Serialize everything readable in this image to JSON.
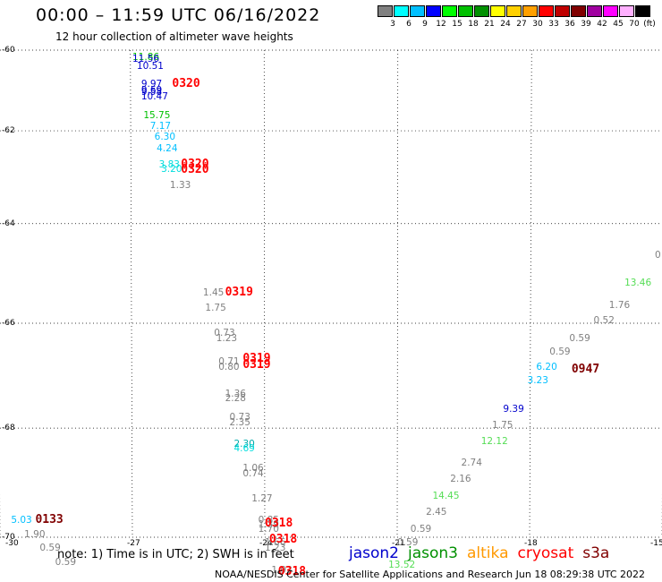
{
  "title": "00:00 – 11:59 UTC 06/16/2022",
  "subtitle": "12 hour collection of altimeter wave heights",
  "legend": {
    "bins": [
      {
        "label": "3",
        "color": "#808080"
      },
      {
        "label": "6",
        "color": "#00ffff"
      },
      {
        "label": "9",
        "color": "#00bfff"
      },
      {
        "label": "12",
        "color": "#0000ff"
      },
      {
        "label": "15",
        "color": "#00ff00"
      },
      {
        "label": "18",
        "color": "#00c000"
      },
      {
        "label": "21",
        "color": "#009000"
      },
      {
        "label": "24",
        "color": "#ffff00"
      },
      {
        "label": "27",
        "color": "#ffd000"
      },
      {
        "label": "30",
        "color": "#ffa000"
      },
      {
        "label": "33",
        "color": "#ff0000"
      },
      {
        "label": "36",
        "color": "#c00000"
      },
      {
        "label": "39",
        "color": "#800000"
      },
      {
        "label": "42",
        "color": "#a000a0"
      },
      {
        "label": "45",
        "color": "#ff00ff"
      },
      {
        "label": "70",
        "color": "#ffb0ff"
      },
      {
        "label": "",
        "color": "#000000"
      }
    ],
    "unit": "(ft)"
  },
  "axes": {
    "lat_ticks": [
      "-60",
      "-62",
      "-64",
      "-66",
      "-68",
      "-70"
    ],
    "lon_ticks": [
      "-30",
      "-27",
      "-24",
      "-21",
      "-18",
      "-15"
    ]
  },
  "observations": [
    {
      "text": "11.86",
      "lon": -27.0,
      "lat": -60.2,
      "color": "#00c000"
    },
    {
      "text": "11.56",
      "lon": -27.0,
      "lat": -60.25,
      "color": "#0000cc"
    },
    {
      "text": "10.51",
      "lon": -26.9,
      "lat": -60.45,
      "color": "#0000cc"
    },
    {
      "text": "9.97",
      "lon": -26.8,
      "lat": -60.9,
      "color": "#0000cc"
    },
    {
      "text": "9.69",
      "lon": -26.8,
      "lat": -61.05,
      "color": "#0000cc"
    },
    {
      "text": "9.58",
      "lon": -26.8,
      "lat": -61.1,
      "color": "#0000cc"
    },
    {
      "text": "10.47",
      "lon": -26.8,
      "lat": -61.2,
      "color": "#0000cc"
    },
    {
      "text": "15.75",
      "lon": -26.75,
      "lat": -61.65,
      "color": "#00c000"
    },
    {
      "text": "7.17",
      "lon": -26.6,
      "lat": -61.9,
      "color": "#00bfff"
    },
    {
      "text": "6.30",
      "lon": -26.5,
      "lat": -62.15,
      "color": "#00bfff"
    },
    {
      "text": "4.24",
      "lon": -26.45,
      "lat": -62.4,
      "color": "#00bfff"
    },
    {
      "text": "3.83",
      "lon": -26.4,
      "lat": -62.75,
      "color": "#00dddd"
    },
    {
      "text": "3.20",
      "lon": -26.35,
      "lat": -62.85,
      "color": "#00dddd"
    },
    {
      "text": "1.33",
      "lon": -26.15,
      "lat": -63.2,
      "color": "#808080"
    },
    {
      "text": "1.45",
      "lon": -25.4,
      "lat": -65.4,
      "color": "#808080"
    },
    {
      "text": "1.75",
      "lon": -25.35,
      "lat": -65.7,
      "color": "#808080"
    },
    {
      "text": "0.73",
      "lon": -25.15,
      "lat": -66.2,
      "color": "#808080"
    },
    {
      "text": "1.23",
      "lon": -25.1,
      "lat": -66.3,
      "color": "#808080"
    },
    {
      "text": "0.71",
      "lon": -25.05,
      "lat": -66.75,
      "color": "#808080"
    },
    {
      "text": "0.80",
      "lon": -25.05,
      "lat": -66.85,
      "color": "#808080"
    },
    {
      "text": "1.36",
      "lon": -24.9,
      "lat": -67.35,
      "color": "#808080"
    },
    {
      "text": "2.28",
      "lon": -24.9,
      "lat": -67.45,
      "color": "#808080"
    },
    {
      "text": "0.73",
      "lon": -24.8,
      "lat": -67.8,
      "color": "#808080"
    },
    {
      "text": "2.35",
      "lon": -24.8,
      "lat": -67.9,
      "color": "#808080"
    },
    {
      "text": "2.30",
      "lon": -24.7,
      "lat": -68.3,
      "color": "#00aaaa"
    },
    {
      "text": "4.69",
      "lon": -24.7,
      "lat": -68.38,
      "color": "#00dddd"
    },
    {
      "text": "1.06",
      "lon": -24.5,
      "lat": -68.75,
      "color": "#808080"
    },
    {
      "text": "0.74",
      "lon": -24.5,
      "lat": -68.85,
      "color": "#808080"
    },
    {
      "text": "1.27",
      "lon": -24.3,
      "lat": -69.3,
      "color": "#808080"
    },
    {
      "text": "0.85",
      "lon": -24.15,
      "lat": -69.7,
      "color": "#808080"
    },
    {
      "text": "1.39",
      "lon": -24.15,
      "lat": -69.78,
      "color": "#808080"
    },
    {
      "text": "1.70",
      "lon": -24.15,
      "lat": -69.86,
      "color": "#808080"
    },
    {
      "text": "1.66",
      "lon": -24.0,
      "lat": -70.1,
      "color": "#808080"
    },
    {
      "text": "1.23",
      "lon": -24.0,
      "lat": -70.2,
      "color": "#808080"
    },
    {
      "text": "1.93",
      "lon": -23.85,
      "lat": -70.6,
      "color": "#808080"
    },
    {
      "text": "5.03",
      "lon": -29.75,
      "lat": -69.7,
      "color": "#00bfff"
    },
    {
      "text": "1.90",
      "lon": -29.45,
      "lat": -69.95,
      "color": "#808080"
    },
    {
      "text": "0.59",
      "lon": -29.1,
      "lat": -70.2,
      "color": "#808080"
    },
    {
      "text": "0.59",
      "lon": -28.75,
      "lat": -70.45,
      "color": "#808080"
    },
    {
      "text": "13.52",
      "lon": -21.2,
      "lat": -70.5,
      "color": "#55dd55"
    },
    {
      "text": "0.59",
      "lon": -21.0,
      "lat": -70.1,
      "color": "#808080"
    },
    {
      "text": "0.59",
      "lon": -20.7,
      "lat": -69.85,
      "color": "#808080"
    },
    {
      "text": "2.45",
      "lon": -20.35,
      "lat": -69.55,
      "color": "#808080"
    },
    {
      "text": "14.45",
      "lon": -20.2,
      "lat": -69.25,
      "color": "#55dd55"
    },
    {
      "text": "2.16",
      "lon": -19.8,
      "lat": -68.95,
      "color": "#808080"
    },
    {
      "text": "2.74",
      "lon": -19.55,
      "lat": -68.65,
      "color": "#808080"
    },
    {
      "text": "12.12",
      "lon": -19.1,
      "lat": -68.25,
      "color": "#55dd55"
    },
    {
      "text": "1.75",
      "lon": -18.85,
      "lat": -67.95,
      "color": "#808080"
    },
    {
      "text": "9.39",
      "lon": -18.6,
      "lat": -67.65,
      "color": "#0000cc"
    },
    {
      "text": "3.23",
      "lon": -18.05,
      "lat": -67.1,
      "color": "#00bfff"
    },
    {
      "text": "6.20",
      "lon": -17.85,
      "lat": -66.85,
      "color": "#00bfff"
    },
    {
      "text": "0.59",
      "lon": -17.55,
      "lat": -66.55,
      "color": "#808080"
    },
    {
      "text": "0.59",
      "lon": -17.1,
      "lat": -66.3,
      "color": "#808080"
    },
    {
      "text": "0.52",
      "lon": -16.55,
      "lat": -65.95,
      "color": "#808080"
    },
    {
      "text": "1.76",
      "lon": -16.2,
      "lat": -65.65,
      "color": "#808080"
    },
    {
      "text": "13.46",
      "lon": -15.85,
      "lat": -65.2,
      "color": "#55dd55"
    },
    {
      "text": "0",
      "lon": -15.1,
      "lat": -64.65,
      "color": "#808080"
    }
  ],
  "time_labels": [
    {
      "text": "0320",
      "lon": -26.1,
      "lat": -60.9,
      "color": "#ff0000"
    },
    {
      "text": "0320",
      "lon": -25.9,
      "lat": -62.75,
      "color": "#ff0000"
    },
    {
      "text": "0320",
      "lon": -25.9,
      "lat": -62.87,
      "color": "#ff0000"
    },
    {
      "text": "0319",
      "lon": -24.9,
      "lat": -65.4,
      "color": "#ff0000"
    },
    {
      "text": "0319",
      "lon": -24.5,
      "lat": -66.7,
      "color": "#ff0000"
    },
    {
      "text": "0319",
      "lon": -24.5,
      "lat": -66.82,
      "color": "#ff0000"
    },
    {
      "text": "0318",
      "lon": -24.0,
      "lat": -69.75,
      "color": "#ff0000"
    },
    {
      "text": "0318",
      "lon": -23.9,
      "lat": -70.05,
      "color": "#ff0000"
    },
    {
      "text": "0318",
      "lon": -23.7,
      "lat": -70.62,
      "color": "#ff0000"
    },
    {
      "text": "0133",
      "lon": -29.2,
      "lat": -69.7,
      "color": "#800000"
    },
    {
      "text": "0947",
      "lon": -17.05,
      "lat": -66.9,
      "color": "#800000"
    }
  ],
  "note": "note:  1) Time is in UTC;  2) SWH is in feet",
  "satellites": [
    {
      "name": "jason2",
      "color": "#0000cc"
    },
    {
      "name": "jason3",
      "color": "#009000"
    },
    {
      "name": "altika",
      "color": "#ff9900"
    },
    {
      "name": "cryosat",
      "color": "#ff0000"
    },
    {
      "name": "s3a",
      "color": "#800000"
    }
  ],
  "credit": "NOAA/NESDIS Center for Satellite Applications and Research    Jun 18 08:29:38 UTC 2022"
}
